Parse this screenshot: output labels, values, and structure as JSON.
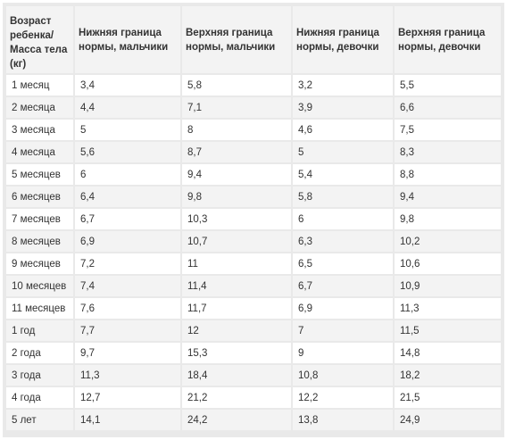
{
  "table": {
    "headers": [
      "Возраст ребенка/ Масса тела (кг)",
      "Нижняя граница нормы, мальчики",
      "Верхняя граница нормы, мальчики",
      "Нижняя граница нормы, девочки",
      "Верхняя граница нормы, девочки"
    ],
    "rows": [
      [
        "1 месяц",
        "3,4",
        "5,8",
        "3,2",
        "5,5"
      ],
      [
        "2 месяца",
        "4,4",
        "7,1",
        "3,9",
        "6,6"
      ],
      [
        "3 месяца",
        "5",
        "8",
        "4,6",
        "7,5"
      ],
      [
        "4 месяца",
        "5,6",
        "8,7",
        "5",
        "8,3"
      ],
      [
        "5 месяцев",
        "6",
        "9,4",
        "5,4",
        "8,8"
      ],
      [
        "6 месяцев",
        "6,4",
        "9,8",
        "5,8",
        "9,4"
      ],
      [
        "7 месяцев",
        "6,7",
        "10,3",
        "6",
        "9,8"
      ],
      [
        "8 месяцев",
        "6,9",
        "10,7",
        "6,3",
        "10,2"
      ],
      [
        "9 месяцев",
        "7,2",
        "11",
        "6,5",
        "10,6"
      ],
      [
        "10 месяцев",
        "7,4",
        "11,4",
        "6,7",
        "10,9"
      ],
      [
        "11 месяцев",
        "7,6",
        "11,7",
        "6,9",
        "11,3"
      ],
      [
        "1 год",
        "7,7",
        "12",
        "7",
        "11,5"
      ],
      [
        "2 года",
        "9,7",
        "15,3",
        "9",
        "14,8"
      ],
      [
        "3 года",
        "11,3",
        "18,4",
        "10,8",
        "18,2"
      ],
      [
        "4 года",
        "12,7",
        "21,2",
        "12,2",
        "21,5"
      ],
      [
        "5 лет",
        "14,1",
        "24,2",
        "13,8",
        "24,9"
      ]
    ]
  }
}
